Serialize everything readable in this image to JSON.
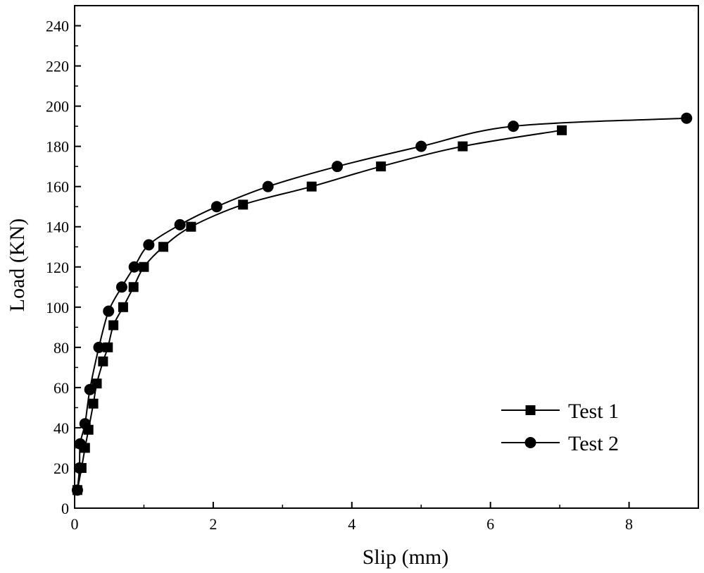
{
  "chart_data": {
    "type": "line",
    "xlabel": "Slip (mm)",
    "ylabel": "Load (KN)",
    "xlim": [
      0,
      9
    ],
    "ylim": [
      0,
      250
    ],
    "x_ticks": [
      0,
      2,
      4,
      6,
      8
    ],
    "y_ticks": [
      0,
      20,
      40,
      60,
      80,
      100,
      120,
      140,
      160,
      180,
      200,
      220,
      240
    ],
    "grid": false,
    "legend_position": "bottom-right",
    "series": [
      {
        "name": "Test 1",
        "marker": "square",
        "color": "#000000",
        "points": [
          [
            0.04,
            9
          ],
          [
            0.1,
            20
          ],
          [
            0.15,
            30
          ],
          [
            0.2,
            39
          ],
          [
            0.27,
            52
          ],
          [
            0.32,
            62
          ],
          [
            0.41,
            73
          ],
          [
            0.48,
            80
          ],
          [
            0.56,
            91
          ],
          [
            0.7,
            100
          ],
          [
            0.85,
            110
          ],
          [
            1.0,
            120
          ],
          [
            1.28,
            130
          ],
          [
            1.68,
            140
          ],
          [
            2.43,
            151
          ],
          [
            3.42,
            160
          ],
          [
            4.42,
            170
          ],
          [
            5.6,
            180
          ],
          [
            7.03,
            188
          ]
        ]
      },
      {
        "name": "Test 2",
        "marker": "circle",
        "color": "#000000",
        "points": [
          [
            0.04,
            9
          ],
          [
            0.07,
            20
          ],
          [
            0.08,
            32
          ],
          [
            0.15,
            42
          ],
          [
            0.22,
            59
          ],
          [
            0.35,
            80
          ],
          [
            0.49,
            98
          ],
          [
            0.68,
            110
          ],
          [
            0.86,
            120
          ],
          [
            1.07,
            131
          ],
          [
            1.52,
            141
          ],
          [
            2.05,
            150
          ],
          [
            2.79,
            160
          ],
          [
            3.79,
            170
          ],
          [
            5.0,
            180
          ],
          [
            6.33,
            190
          ],
          [
            8.83,
            194
          ]
        ]
      }
    ]
  }
}
